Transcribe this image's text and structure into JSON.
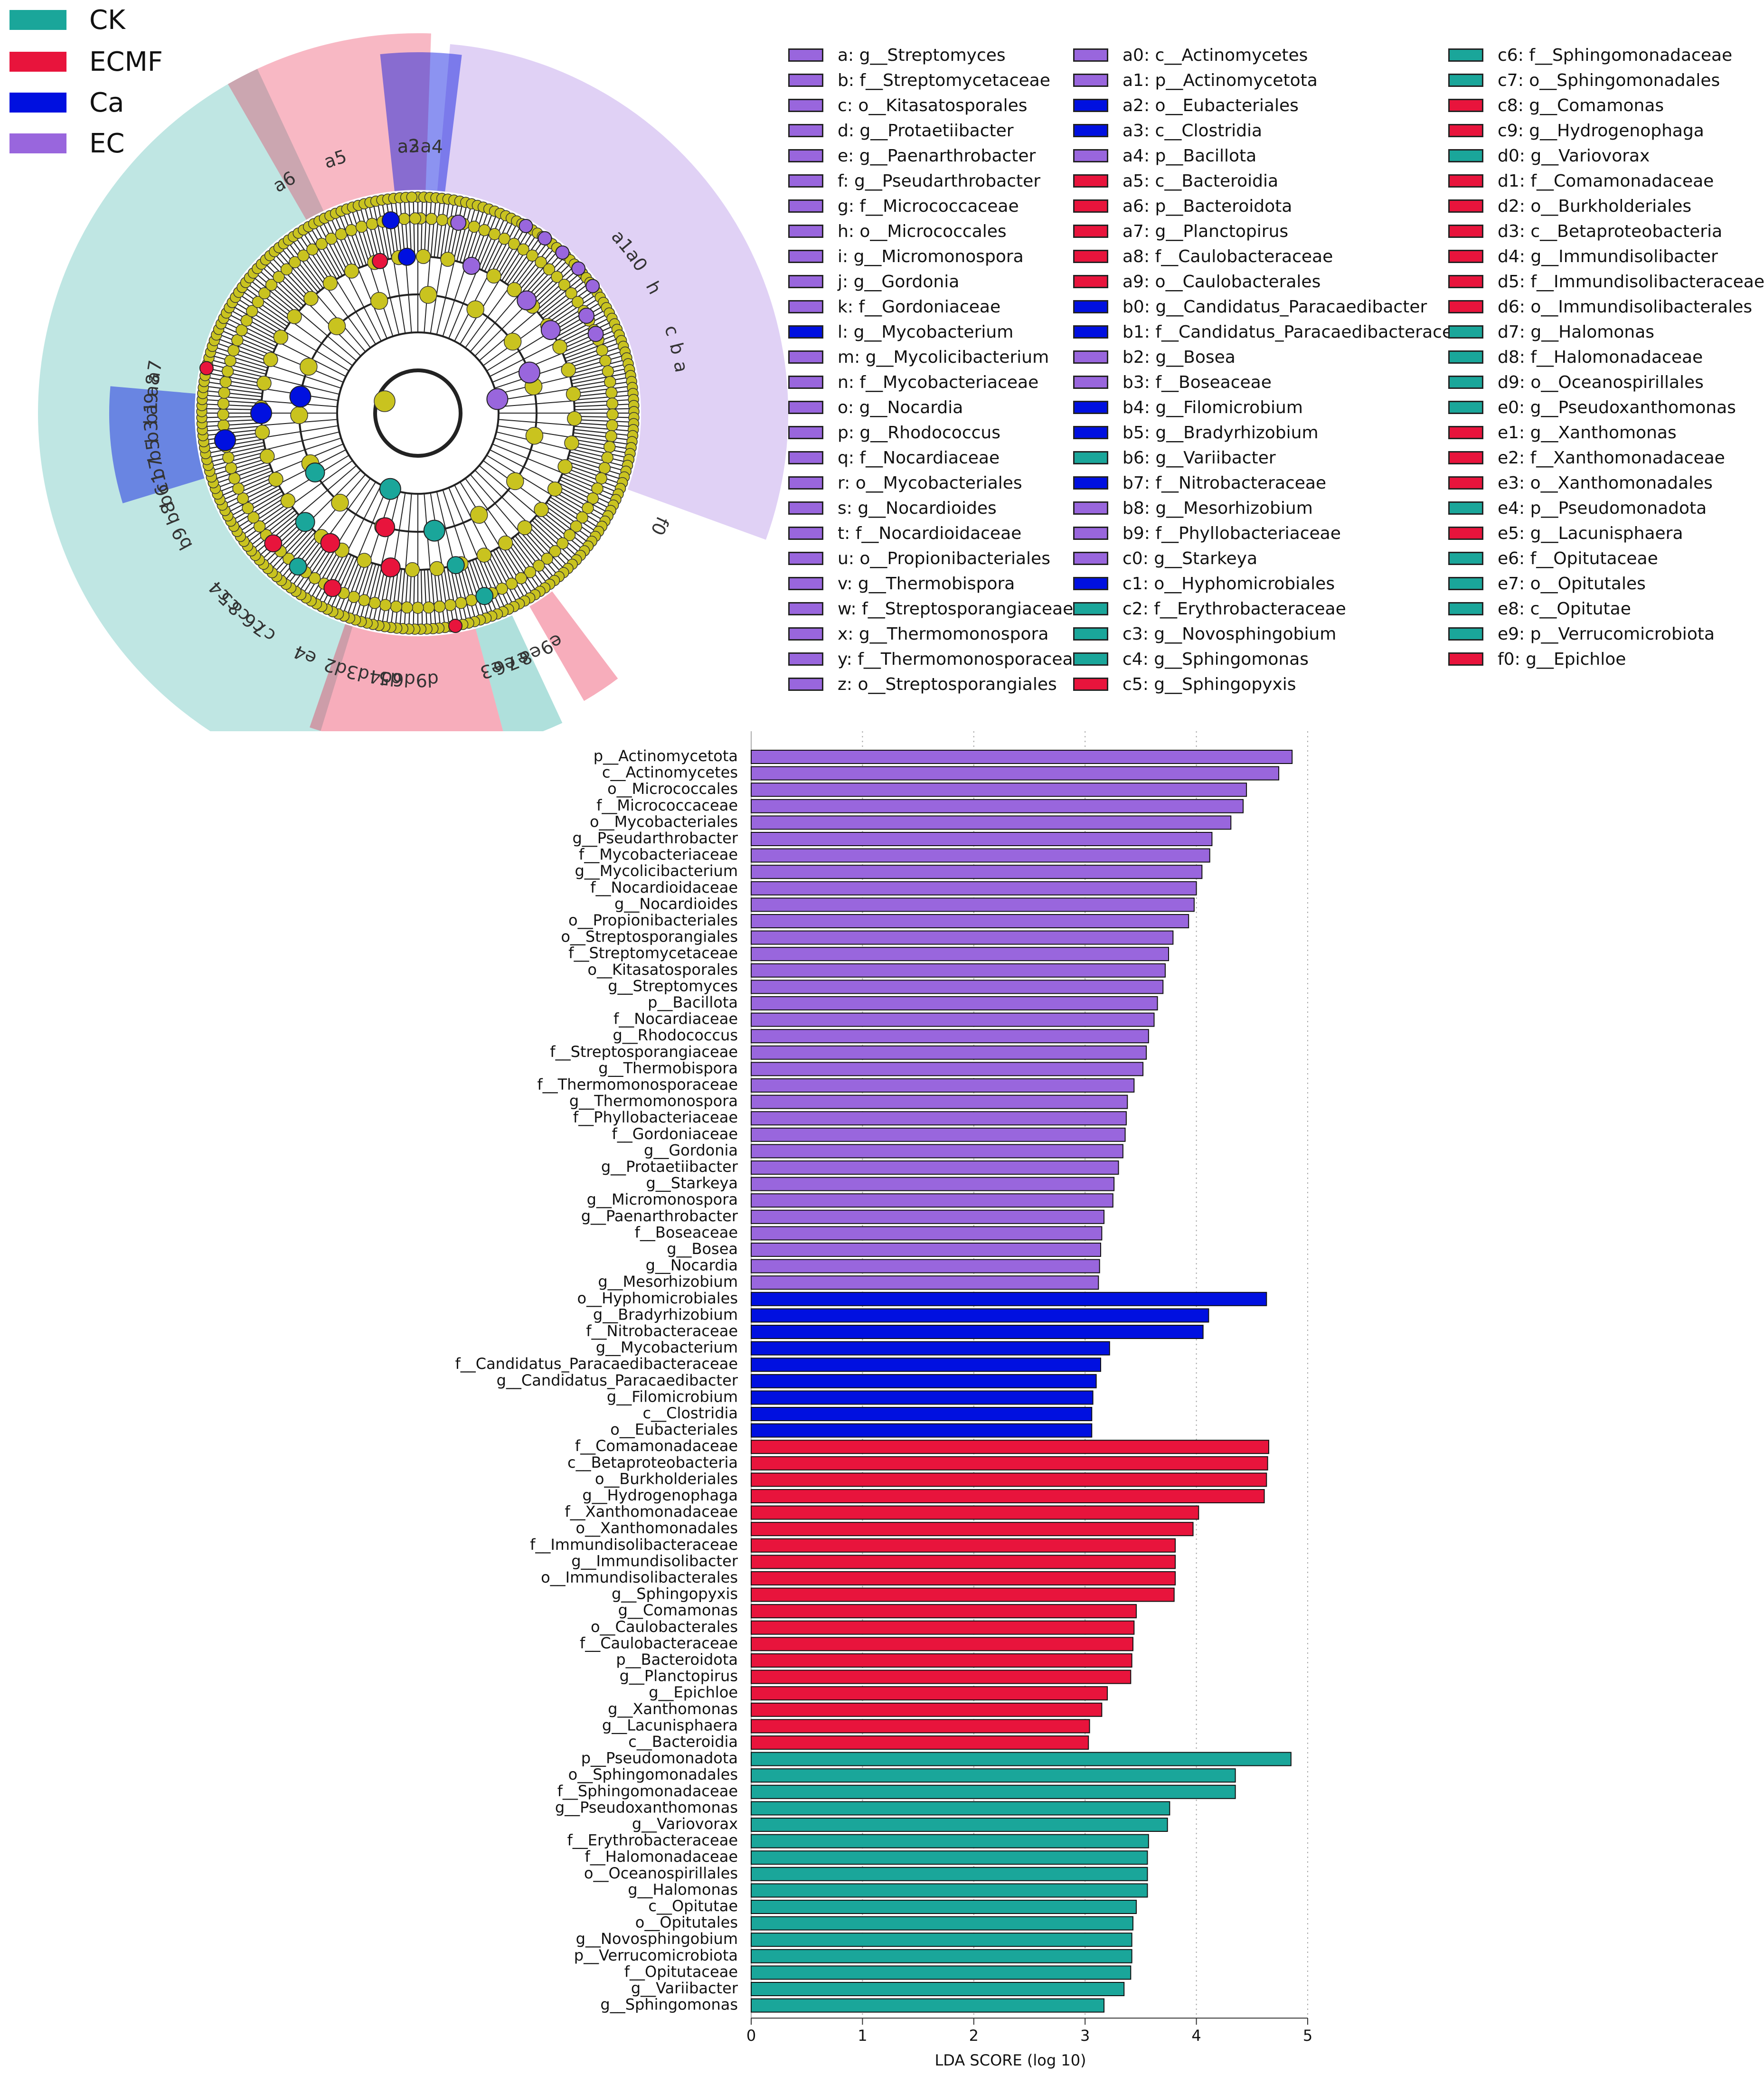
{
  "group_legend": [
    {
      "label": "CK",
      "color": "#1aa69a"
    },
    {
      "label": "ECMF",
      "color": "#e8143c"
    },
    {
      "label": "Ca",
      "color": "#0010e0"
    },
    {
      "label": "EC",
      "color": "#9966dd"
    }
  ],
  "group_colors": {
    "CK": "#1aa69a",
    "ECMF": "#e8143c",
    "Ca": "#0010e0",
    "EC": "#9966dd"
  },
  "clade_legend": [
    {
      "text": "a: g__Streptomyces",
      "group": "EC"
    },
    {
      "text": "b: f__Streptomycetaceae",
      "group": "EC"
    },
    {
      "text": "c: o__Kitasatosporales",
      "group": "EC"
    },
    {
      "text": "d: g__Protaetiibacter",
      "group": "EC"
    },
    {
      "text": "e: g__Paenarthrobacter",
      "group": "EC"
    },
    {
      "text": "f: g__Pseudarthrobacter",
      "group": "EC"
    },
    {
      "text": "g: f__Micrococcaceae",
      "group": "EC"
    },
    {
      "text": "h: o__Micrococcales",
      "group": "EC"
    },
    {
      "text": "i: g__Micromonospora",
      "group": "EC"
    },
    {
      "text": "j: g__Gordonia",
      "group": "EC"
    },
    {
      "text": "k: f__Gordoniaceae",
      "group": "EC"
    },
    {
      "text": "l: g__Mycobacterium",
      "group": "Ca"
    },
    {
      "text": "m: g__Mycolicibacterium",
      "group": "EC"
    },
    {
      "text": "n: f__Mycobacteriaceae",
      "group": "EC"
    },
    {
      "text": "o: g__Nocardia",
      "group": "EC"
    },
    {
      "text": "p: g__Rhodococcus",
      "group": "EC"
    },
    {
      "text": "q: f__Nocardiaceae",
      "group": "EC"
    },
    {
      "text": "r: o__Mycobacteriales",
      "group": "EC"
    },
    {
      "text": "s: g__Nocardioides",
      "group": "EC"
    },
    {
      "text": "t: f__Nocardioidaceae",
      "group": "EC"
    },
    {
      "text": "u: o__Propionibacteriales",
      "group": "EC"
    },
    {
      "text": "v: g__Thermobispora",
      "group": "EC"
    },
    {
      "text": "w: f__Streptosporangiaceae",
      "group": "EC"
    },
    {
      "text": "x: g__Thermomonospora",
      "group": "EC"
    },
    {
      "text": "y: f__Thermomonosporaceae",
      "group": "EC"
    },
    {
      "text": "z: o__Streptosporangiales",
      "group": "EC"
    },
    {
      "text": "a0: c__Actinomycetes",
      "group": "EC"
    },
    {
      "text": "a1: p__Actinomycetota",
      "group": "EC"
    },
    {
      "text": "a2: o__Eubacteriales",
      "group": "Ca"
    },
    {
      "text": "a3: c__Clostridia",
      "group": "Ca"
    },
    {
      "text": "a4: p__Bacillota",
      "group": "EC"
    },
    {
      "text": "a5: c__Bacteroidia",
      "group": "ECMF"
    },
    {
      "text": "a6: p__Bacteroidota",
      "group": "ECMF"
    },
    {
      "text": "a7: g__Planctopirus",
      "group": "ECMF"
    },
    {
      "text": "a8: f__Caulobacteraceae",
      "group": "ECMF"
    },
    {
      "text": "a9: o__Caulobacterales",
      "group": "ECMF"
    },
    {
      "text": "b0: g__Candidatus_Paracaedibacter",
      "group": "Ca"
    },
    {
      "text": "b1: f__Candidatus_Paracaedibacteraceae",
      "group": "Ca"
    },
    {
      "text": "b2: g__Bosea",
      "group": "EC"
    },
    {
      "text": "b3: f__Boseaceae",
      "group": "EC"
    },
    {
      "text": "b4: g__Filomicrobium",
      "group": "Ca"
    },
    {
      "text": "b5: g__Bradyrhizobium",
      "group": "Ca"
    },
    {
      "text": "b6: g__Variibacter",
      "group": "CK"
    },
    {
      "text": "b7: f__Nitrobacteraceae",
      "group": "Ca"
    },
    {
      "text": "b8: g__Mesorhizobium",
      "group": "EC"
    },
    {
      "text": "b9: f__Phyllobacteriaceae",
      "group": "EC"
    },
    {
      "text": "c0: g__Starkeya",
      "group": "EC"
    },
    {
      "text": "c1: o__Hyphomicrobiales",
      "group": "Ca"
    },
    {
      "text": "c2: f__Erythrobacteraceae",
      "group": "CK"
    },
    {
      "text": "c3: g__Novosphingobium",
      "group": "CK"
    },
    {
      "text": "c4: g__Sphingomonas",
      "group": "CK"
    },
    {
      "text": "c5: g__Sphingopyxis",
      "group": "ECMF"
    },
    {
      "text": "c6: f__Sphingomonadaceae",
      "group": "CK"
    },
    {
      "text": "c7: o__Sphingomonadales",
      "group": "CK"
    },
    {
      "text": "c8: g__Comamonas",
      "group": "ECMF"
    },
    {
      "text": "c9: g__Hydrogenophaga",
      "group": "ECMF"
    },
    {
      "text": "d0: g__Variovorax",
      "group": "CK"
    },
    {
      "text": "d1: f__Comamonadaceae",
      "group": "ECMF"
    },
    {
      "text": "d2: o__Burkholderiales",
      "group": "ECMF"
    },
    {
      "text": "d3: c__Betaproteobacteria",
      "group": "ECMF"
    },
    {
      "text": "d4: g__Immundisolibacter",
      "group": "ECMF"
    },
    {
      "text": "d5: f__Immundisolibacteraceae",
      "group": "ECMF"
    },
    {
      "text": "d6: o__Immundisolibacterales",
      "group": "ECMF"
    },
    {
      "text": "d7: g__Halomonas",
      "group": "CK"
    },
    {
      "text": "d8: f__Halomonadaceae",
      "group": "CK"
    },
    {
      "text": "d9: o__Oceanospirillales",
      "group": "CK"
    },
    {
      "text": "e0: g__Pseudoxanthomonas",
      "group": "CK"
    },
    {
      "text": "e1: g__Xanthomonas",
      "group": "ECMF"
    },
    {
      "text": "e2: f__Xanthomonadaceae",
      "group": "ECMF"
    },
    {
      "text": "e3: o__Xanthomonadales",
      "group": "ECMF"
    },
    {
      "text": "e4: p__Pseudomonadota",
      "group": "CK"
    },
    {
      "text": "e5: g__Lacunisphaera",
      "group": "ECMF"
    },
    {
      "text": "e6: f__Opitutaceae",
      "group": "CK"
    },
    {
      "text": "e7: o__Opitutales",
      "group": "CK"
    },
    {
      "text": "e8: c__Opitutae",
      "group": "CK"
    },
    {
      "text": "e9: p__Verrucomicrobiota",
      "group": "CK"
    },
    {
      "text": "f0: g__Epichloe",
      "group": "ECMF"
    }
  ],
  "cladogram_highlights": [
    {
      "group": "CK",
      "start": 197,
      "end": 335,
      "r1": 470,
      "r2": 800,
      "opacity": 0.28
    },
    {
      "group": "CK",
      "start": 155,
      "end": 165,
      "r1": 470,
      "r2": 720,
      "opacity": 0.35
    },
    {
      "group": "ECMF",
      "start": 165,
      "end": 199,
      "r1": 470,
      "r2": 700,
      "opacity": 0.35
    },
    {
      "group": "ECMF",
      "start": 143,
      "end": 150,
      "r1": 470,
      "r2": 700,
      "opacity": 0.35
    },
    {
      "group": "ECMF",
      "start": 330,
      "end": 362,
      "r1": 470,
      "r2": 800,
      "opacity": 0.3
    },
    {
      "group": "EC",
      "start": 5,
      "end": 110,
      "r1": 470,
      "r2": 780,
      "opacity": 0.3
    },
    {
      "group": "Ca",
      "start": 354,
      "end": 367,
      "r1": 470,
      "r2": 760,
      "opacity": 0.45
    },
    {
      "group": "Ca",
      "start": 253,
      "end": 275,
      "r1": 470,
      "r2": 650,
      "opacity": 0.45
    }
  ],
  "cladogram_labels": [
    {
      "text": "a4",
      "angle": 3
    },
    {
      "text": "a3",
      "angle": -2
    },
    {
      "text": "a2",
      "angle": -2
    },
    {
      "text": "a5",
      "angle": -18
    },
    {
      "text": "a6",
      "angle": -30
    },
    {
      "text": "a1",
      "angle": 50
    },
    {
      "text": "a0",
      "angle": 55
    },
    {
      "text": "h",
      "angle": 62
    },
    {
      "text": "c",
      "angle": 72
    },
    {
      "text": "b",
      "angle": 76
    },
    {
      "text": "a",
      "angle": 80
    },
    {
      "text": "f0",
      "angle": 115
    },
    {
      "text": "e3",
      "angle": 164
    },
    {
      "text": "e9",
      "angle": 150
    },
    {
      "text": "e8",
      "angle": 155
    },
    {
      "text": "e7",
      "angle": 158
    },
    {
      "text": "e6",
      "angle": 161
    },
    {
      "text": "e4",
      "angle": 205
    },
    {
      "text": "d2",
      "angle": 198
    },
    {
      "text": "d3",
      "angle": 193
    },
    {
      "text": "d9",
      "angle": 178
    },
    {
      "text": "d6",
      "angle": 183
    },
    {
      "text": "d5",
      "angle": 186
    },
    {
      "text": "d4",
      "angle": 188
    },
    {
      "text": "c7",
      "angle": 215
    },
    {
      "text": "c6",
      "angle": 218
    },
    {
      "text": "c8",
      "angle": 222
    },
    {
      "text": "c5",
      "angle": 225
    },
    {
      "text": "c4",
      "angle": 228
    },
    {
      "text": "c1",
      "angle": 255
    },
    {
      "text": "b7",
      "angle": 258
    },
    {
      "text": "b5",
      "angle": 262
    },
    {
      "text": "b3",
      "angle": 266
    },
    {
      "text": "b1",
      "angle": 270
    },
    {
      "text": "a9",
      "angle": 272
    },
    {
      "text": "a8",
      "angle": 276
    },
    {
      "text": "a7",
      "angle": 279
    },
    {
      "text": "b9",
      "angle": 242
    },
    {
      "text": "b8",
      "angle": 248
    },
    {
      "text": "b6",
      "angle": 252
    }
  ],
  "chart_data": {
    "type": "bar",
    "orientation": "horizontal",
    "xlabel": "LDA SCORE (log 10)",
    "xlim": [
      0,
      5
    ],
    "xticks": [
      0,
      1,
      2,
      3,
      4,
      5
    ],
    "grid": "vertical dotted",
    "bars": [
      {
        "label": "p__Actinomycetota",
        "value": 4.86,
        "group": "EC"
      },
      {
        "label": "c__Actinomycetes",
        "value": 4.74,
        "group": "EC"
      },
      {
        "label": "o__Micrococcales",
        "value": 4.45,
        "group": "EC"
      },
      {
        "label": "f__Micrococcaceae",
        "value": 4.42,
        "group": "EC"
      },
      {
        "label": "o__Mycobacteriales",
        "value": 4.31,
        "group": "EC"
      },
      {
        "label": "g__Pseudarthrobacter",
        "value": 4.14,
        "group": "EC"
      },
      {
        "label": "f__Mycobacteriaceae",
        "value": 4.12,
        "group": "EC"
      },
      {
        "label": "g__Mycolicibacterium",
        "value": 4.05,
        "group": "EC"
      },
      {
        "label": "f__Nocardioidaceae",
        "value": 4.0,
        "group": "EC"
      },
      {
        "label": "g__Nocardioides",
        "value": 3.98,
        "group": "EC"
      },
      {
        "label": "o__Propionibacteriales",
        "value": 3.93,
        "group": "EC"
      },
      {
        "label": "o__Streptosporangiales",
        "value": 3.79,
        "group": "EC"
      },
      {
        "label": "f__Streptomycetaceae",
        "value": 3.75,
        "group": "EC"
      },
      {
        "label": "o__Kitasatosporales",
        "value": 3.72,
        "group": "EC"
      },
      {
        "label": "g__Streptomyces",
        "value": 3.7,
        "group": "EC"
      },
      {
        "label": "p__Bacillota",
        "value": 3.65,
        "group": "EC"
      },
      {
        "label": "f__Nocardiaceae",
        "value": 3.62,
        "group": "EC"
      },
      {
        "label": "g__Rhodococcus",
        "value": 3.57,
        "group": "EC"
      },
      {
        "label": "f__Streptosporangiaceae",
        "value": 3.55,
        "group": "EC"
      },
      {
        "label": "g__Thermobispora",
        "value": 3.52,
        "group": "EC"
      },
      {
        "label": "f__Thermomonosporaceae",
        "value": 3.44,
        "group": "EC"
      },
      {
        "label": "g__Thermomonospora",
        "value": 3.38,
        "group": "EC"
      },
      {
        "label": "f__Phyllobacteriaceae",
        "value": 3.37,
        "group": "EC"
      },
      {
        "label": "f__Gordoniaceae",
        "value": 3.36,
        "group": "EC"
      },
      {
        "label": "g__Gordonia",
        "value": 3.34,
        "group": "EC"
      },
      {
        "label": "g__Protaetiibacter",
        "value": 3.3,
        "group": "EC"
      },
      {
        "label": "g__Starkeya",
        "value": 3.26,
        "group": "EC"
      },
      {
        "label": "g__Micromonospora",
        "value": 3.25,
        "group": "EC"
      },
      {
        "label": "g__Paenarthrobacter",
        "value": 3.17,
        "group": "EC"
      },
      {
        "label": "f__Boseaceae",
        "value": 3.15,
        "group": "EC"
      },
      {
        "label": "g__Bosea",
        "value": 3.14,
        "group": "EC"
      },
      {
        "label": "g__Nocardia",
        "value": 3.13,
        "group": "EC"
      },
      {
        "label": "g__Mesorhizobium",
        "value": 3.12,
        "group": "EC"
      },
      {
        "label": "o__Hyphomicrobiales",
        "value": 4.63,
        "group": "Ca"
      },
      {
        "label": "g__Bradyrhizobium",
        "value": 4.11,
        "group": "Ca"
      },
      {
        "label": "f__Nitrobacteraceae",
        "value": 4.06,
        "group": "Ca"
      },
      {
        "label": "g__Mycobacterium",
        "value": 3.22,
        "group": "Ca"
      },
      {
        "label": "f__Candidatus_Paracaedibacteraceae",
        "value": 3.14,
        "group": "Ca"
      },
      {
        "label": "g__Candidatus_Paracaedibacter",
        "value": 3.1,
        "group": "Ca"
      },
      {
        "label": "g__Filomicrobium",
        "value": 3.07,
        "group": "Ca"
      },
      {
        "label": "c__Clostridia",
        "value": 3.06,
        "group": "Ca"
      },
      {
        "label": "o__Eubacteriales",
        "value": 3.06,
        "group": "Ca"
      },
      {
        "label": "f__Comamonadaceae",
        "value": 4.65,
        "group": "ECMF"
      },
      {
        "label": "c__Betaproteobacteria",
        "value": 4.64,
        "group": "ECMF"
      },
      {
        "label": "o__Burkholderiales",
        "value": 4.63,
        "group": "ECMF"
      },
      {
        "label": "g__Hydrogenophaga",
        "value": 4.61,
        "group": "ECMF"
      },
      {
        "label": "f__Xanthomonadaceae",
        "value": 4.02,
        "group": "ECMF"
      },
      {
        "label": "o__Xanthomonadales",
        "value": 3.97,
        "group": "ECMF"
      },
      {
        "label": "f__Immundisolibacteraceae",
        "value": 3.81,
        "group": "ECMF"
      },
      {
        "label": "g__Immundisolibacter",
        "value": 3.81,
        "group": "ECMF"
      },
      {
        "label": "o__Immundisolibacterales",
        "value": 3.81,
        "group": "ECMF"
      },
      {
        "label": "g__Sphingopyxis",
        "value": 3.8,
        "group": "ECMF"
      },
      {
        "label": "g__Comamonas",
        "value": 3.46,
        "group": "ECMF"
      },
      {
        "label": "o__Caulobacterales",
        "value": 3.44,
        "group": "ECMF"
      },
      {
        "label": "f__Caulobacteraceae",
        "value": 3.43,
        "group": "ECMF"
      },
      {
        "label": "p__Bacteroidota",
        "value": 3.42,
        "group": "ECMF"
      },
      {
        "label": "g__Planctopirus",
        "value": 3.41,
        "group": "ECMF"
      },
      {
        "label": "g__Epichloe",
        "value": 3.2,
        "group": "ECMF"
      },
      {
        "label": "g__Xanthomonas",
        "value": 3.15,
        "group": "ECMF"
      },
      {
        "label": "g__Lacunisphaera",
        "value": 3.04,
        "group": "ECMF"
      },
      {
        "label": "c__Bacteroidia",
        "value": 3.03,
        "group": "ECMF"
      },
      {
        "label": "p__Pseudomonadota",
        "value": 4.85,
        "group": "CK"
      },
      {
        "label": "o__Sphingomonadales",
        "value": 4.35,
        "group": "CK"
      },
      {
        "label": "f__Sphingomonadaceae",
        "value": 4.35,
        "group": "CK"
      },
      {
        "label": "g__Pseudoxanthomonas",
        "value": 3.76,
        "group": "CK"
      },
      {
        "label": "g__Variovorax",
        "value": 3.74,
        "group": "CK"
      },
      {
        "label": "f__Erythrobacteraceae",
        "value": 3.57,
        "group": "CK"
      },
      {
        "label": "f__Halomonadaceae",
        "value": 3.56,
        "group": "CK"
      },
      {
        "label": "o__Oceanospirillales",
        "value": 3.56,
        "group": "CK"
      },
      {
        "label": "g__Halomonas",
        "value": 3.56,
        "group": "CK"
      },
      {
        "label": "c__Opitutae",
        "value": 3.46,
        "group": "CK"
      },
      {
        "label": "o__Opitutales",
        "value": 3.43,
        "group": "CK"
      },
      {
        "label": "g__Novosphingobium",
        "value": 3.42,
        "group": "CK"
      },
      {
        "label": "p__Verrucomicrobiota",
        "value": 3.42,
        "group": "CK"
      },
      {
        "label": "f__Opitutaceae",
        "value": 3.41,
        "group": "CK"
      },
      {
        "label": "g__Variibacter",
        "value": 3.35,
        "group": "CK"
      },
      {
        "label": "g__Sphingomonas",
        "value": 3.17,
        "group": "CK"
      }
    ]
  }
}
